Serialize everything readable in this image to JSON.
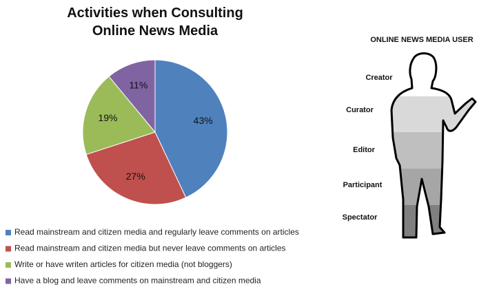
{
  "chart_data": {
    "type": "pie",
    "title": "Activities when Consulting Online News Media",
    "categories": [
      "Read mainstream and citizen media and regularly leave comments on articles",
      "Read mainstream and citizen media but never leave comments on articles",
      "Write or have writen articles for citizen media (not bloggers)",
      "Have a blog and leave comments on mainstream and citizen media"
    ],
    "values": [
      43,
      27,
      19,
      11
    ],
    "value_labels": [
      "43%",
      "27%",
      "19%",
      "11%"
    ],
    "colors": [
      "#4f81bd",
      "#c0504d",
      "#9bbb59",
      "#8064a2"
    ]
  },
  "diagram": {
    "title": "ONLINE NEWS MEDIA USER",
    "levels": [
      "Creator",
      "Curator",
      "Editor",
      "Participant",
      "Spectator"
    ]
  }
}
